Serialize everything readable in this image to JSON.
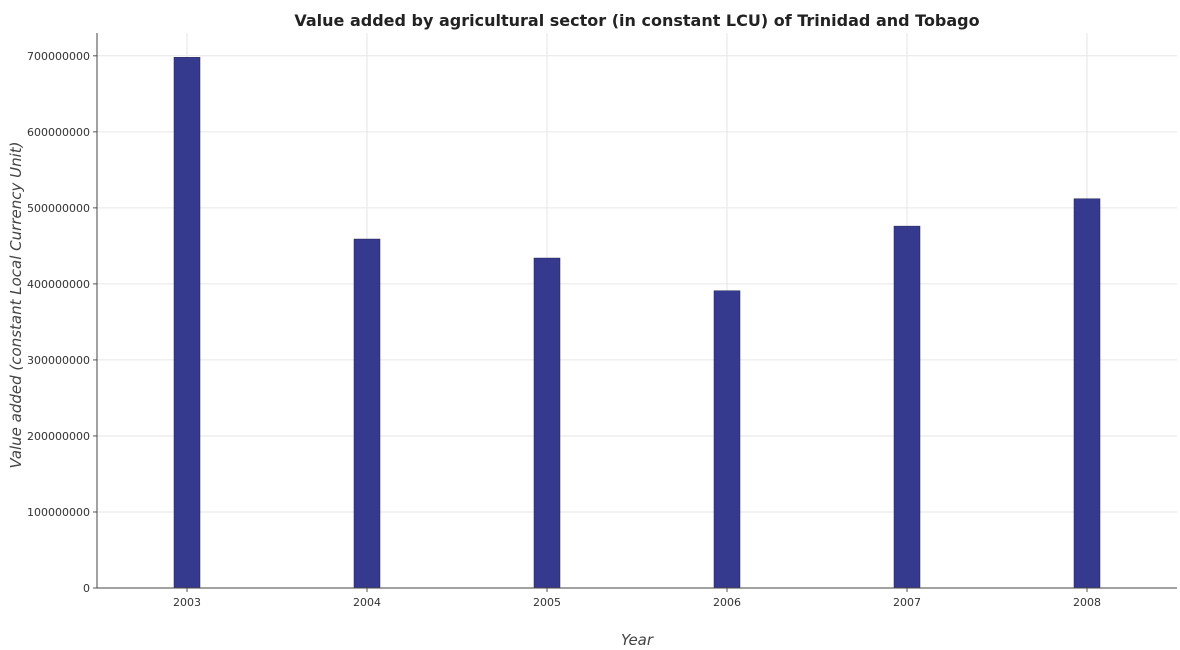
{
  "chart_data": {
    "type": "bar",
    "title": "Value added by agricultural sector (in constant LCU) of Trinidad and Tobago",
    "xlabel": "Year",
    "ylabel": "Value added (constant Local Currency Unit)",
    "categories": [
      "2003",
      "2004",
      "2005",
      "2006",
      "2007",
      "2008"
    ],
    "values": [
      698000000,
      459000000,
      434000000,
      391000000,
      476000000,
      512000000
    ],
    "ylim": [
      0,
      730000000
    ],
    "yticks": [
      0,
      100000000,
      200000000,
      300000000,
      400000000,
      500000000,
      600000000,
      700000000
    ],
    "ytick_labels": [
      "0",
      "100000000",
      "200000000",
      "300000000",
      "400000000",
      "500000000",
      "600000000",
      "700000000"
    ],
    "grid": true,
    "bar_color": "#363a8e"
  }
}
